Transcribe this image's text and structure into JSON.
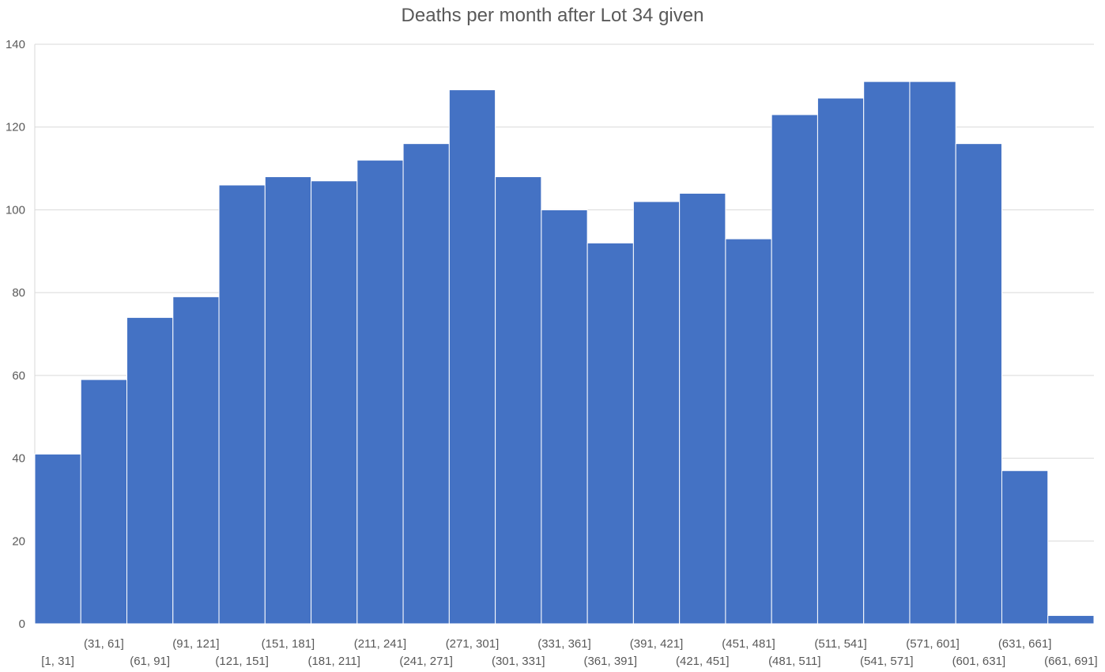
{
  "chart_data": {
    "type": "bar",
    "title": "Deaths per month after Lot 34 given",
    "xlabel": "",
    "ylabel": "",
    "categories": [
      "[1, 31]",
      "(31, 61]",
      "(61, 91]",
      "(91, 121]",
      "(121, 151]",
      "(151, 181]",
      "(181, 211]",
      "(211, 241]",
      "(241, 271]",
      "(271, 301]",
      "(301, 331]",
      "(331, 361]",
      "(361, 391]",
      "(391, 421]",
      "(421, 451]",
      "(451, 481]",
      "(481, 511]",
      "(511, 541]",
      "(541, 571]",
      "(571, 601]",
      "(601, 631]",
      "(631, 661]",
      "(661, 691]"
    ],
    "values": [
      41,
      59,
      74,
      79,
      106,
      108,
      107,
      112,
      116,
      129,
      108,
      100,
      92,
      102,
      104,
      93,
      123,
      127,
      131,
      131,
      116,
      37,
      2
    ],
    "ylim": [
      0,
      140
    ],
    "yticks": [
      0,
      20,
      40,
      60,
      80,
      100,
      120,
      140
    ],
    "bar_color": "#4472C4",
    "grid_color": "#D9D9D9",
    "grid": true,
    "legend": "none"
  }
}
